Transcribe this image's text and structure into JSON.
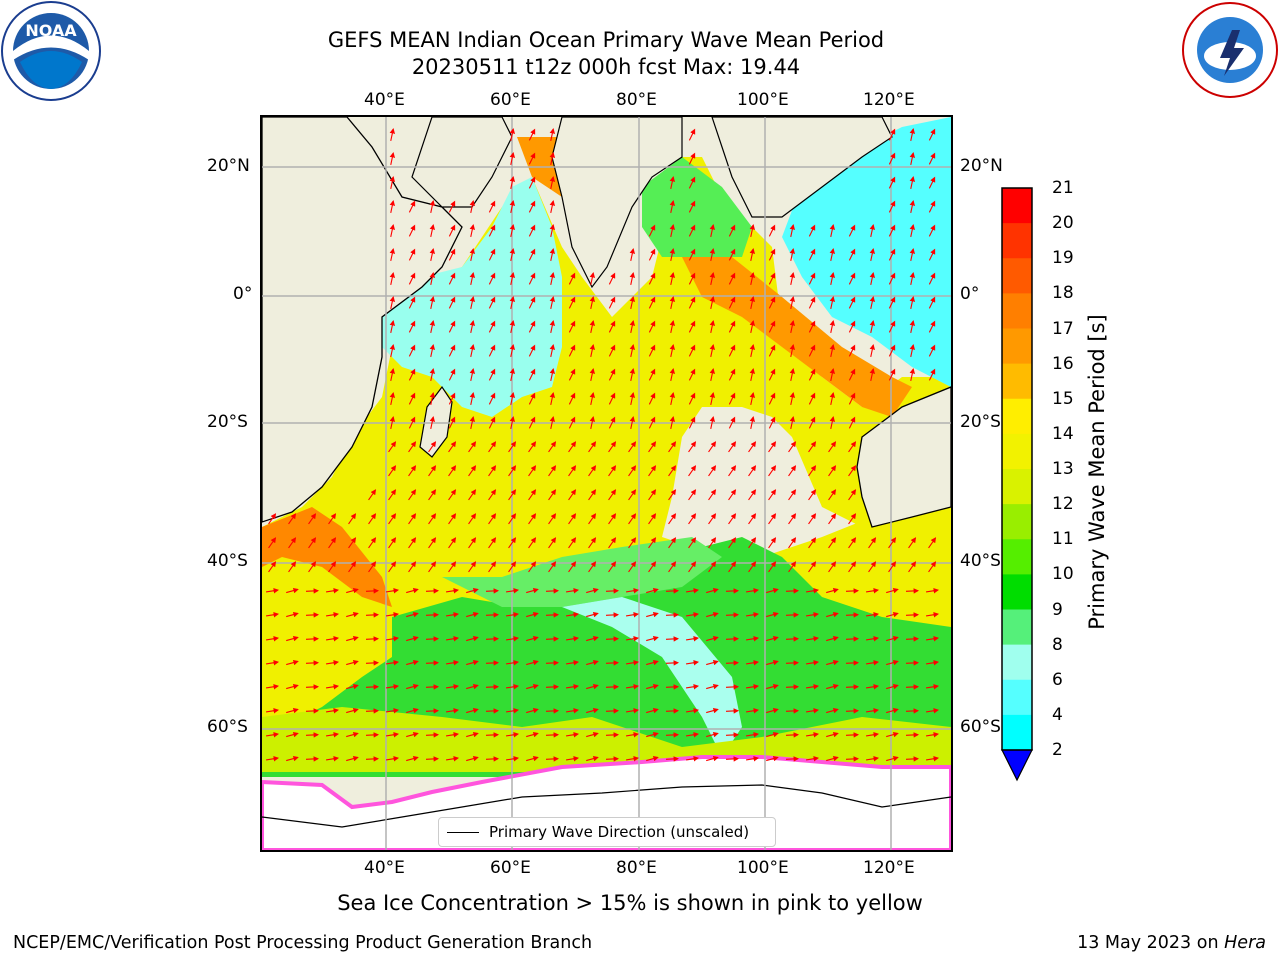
{
  "title": {
    "line1": "GEFS MEAN Indian Ocean Primary Wave Mean Period",
    "line2": "20230511 t12z 000h fcst   Max: 19.44"
  },
  "logos": {
    "noaa": {
      "text": "NOAA",
      "ring_text": "NATIONAL OCEANIC AND ATMOSPHERIC ADMINISTRATION · U.S. DEPARTMENT OF COMMERCE"
    },
    "nws": {
      "ring_text": "NATIONAL WEATHER SERVICE"
    }
  },
  "axes": {
    "lon_ticks_top": [
      "40°E",
      "60°E",
      "80°E",
      "100°E",
      "120°E"
    ],
    "lon_ticks_bottom": [
      "40°E",
      "60°E",
      "80°E",
      "100°E",
      "120°E"
    ],
    "lat_ticks_left": [
      "20°N",
      "0°",
      "20°S",
      "40°S",
      "60°S"
    ],
    "lat_ticks_right": [
      "20°N",
      "0°",
      "20°S",
      "40°S",
      "60°S"
    ]
  },
  "legend": {
    "label": "Primary Wave Direction (unscaled)"
  },
  "colorbar": {
    "title": "Primary Wave Mean Period [s]",
    "labels": [
      "21",
      "20",
      "19",
      "18",
      "17",
      "16",
      "15",
      "14",
      "13",
      "12",
      "11",
      "10",
      "9",
      "8",
      "6",
      "4",
      "2"
    ],
    "colors": [
      "#ff0000",
      "#ff3300",
      "#ff5a00",
      "#ff7f00",
      "#ff9900",
      "#ffbb00",
      "#ffee00",
      "#f2f200",
      "#d9f200",
      "#99ee00",
      "#55ee00",
      "#00dd00",
      "#55f07a",
      "#a0ffee",
      "#55ffff",
      "#00ffff",
      "#00d0ff",
      "#0066ff",
      "#0000ff"
    ]
  },
  "caption": "Sea Ice Concentration > 15% is shown in pink to yellow",
  "footer": {
    "left": "NCEP/EMC/Verification Post Processing Product Generation Branch",
    "right_prefix": "13 May 2023 on",
    "right_host": "Hera"
  },
  "map_colors": {
    "land": "#efeedd",
    "ice": "#ffffff",
    "ice_edge": "#ff55dd",
    "arrow": "#ff0000",
    "grid": "#b0b0b0"
  }
}
